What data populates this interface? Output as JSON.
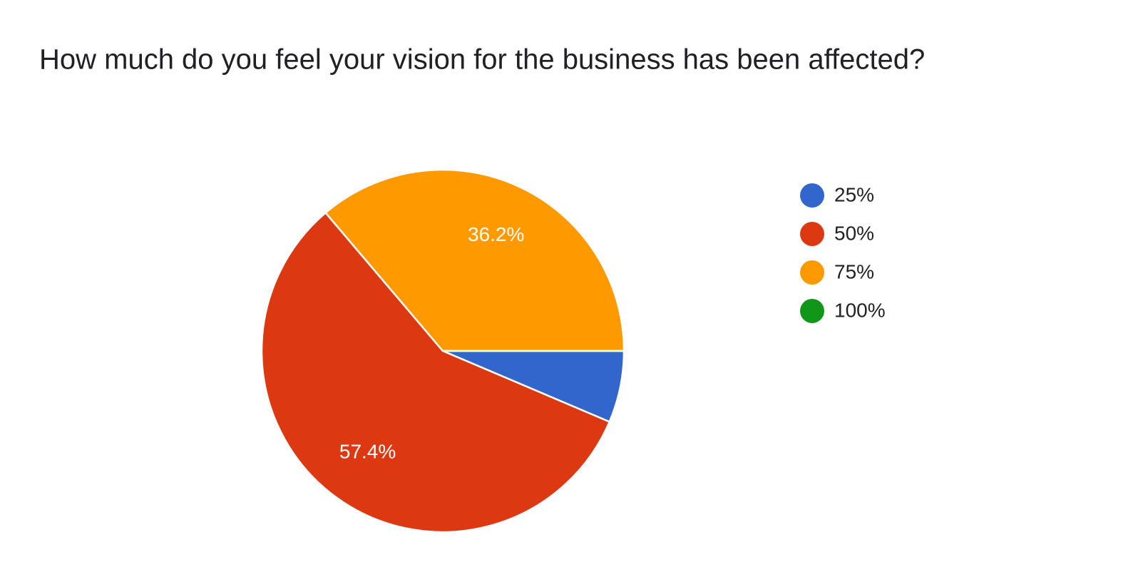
{
  "chart_data": {
    "type": "pie",
    "title": "How much do you feel your vision for the business has been affected?",
    "categories": [
      "25%",
      "50%",
      "75%",
      "100%"
    ],
    "values": [
      6.4,
      57.4,
      36.2,
      0
    ],
    "value_labels": [
      null,
      "57.4%",
      "36.2%",
      null
    ],
    "colors": [
      "#3366cc",
      "#dc3912",
      "#ff9900",
      "#109618"
    ],
    "legend": "right"
  }
}
